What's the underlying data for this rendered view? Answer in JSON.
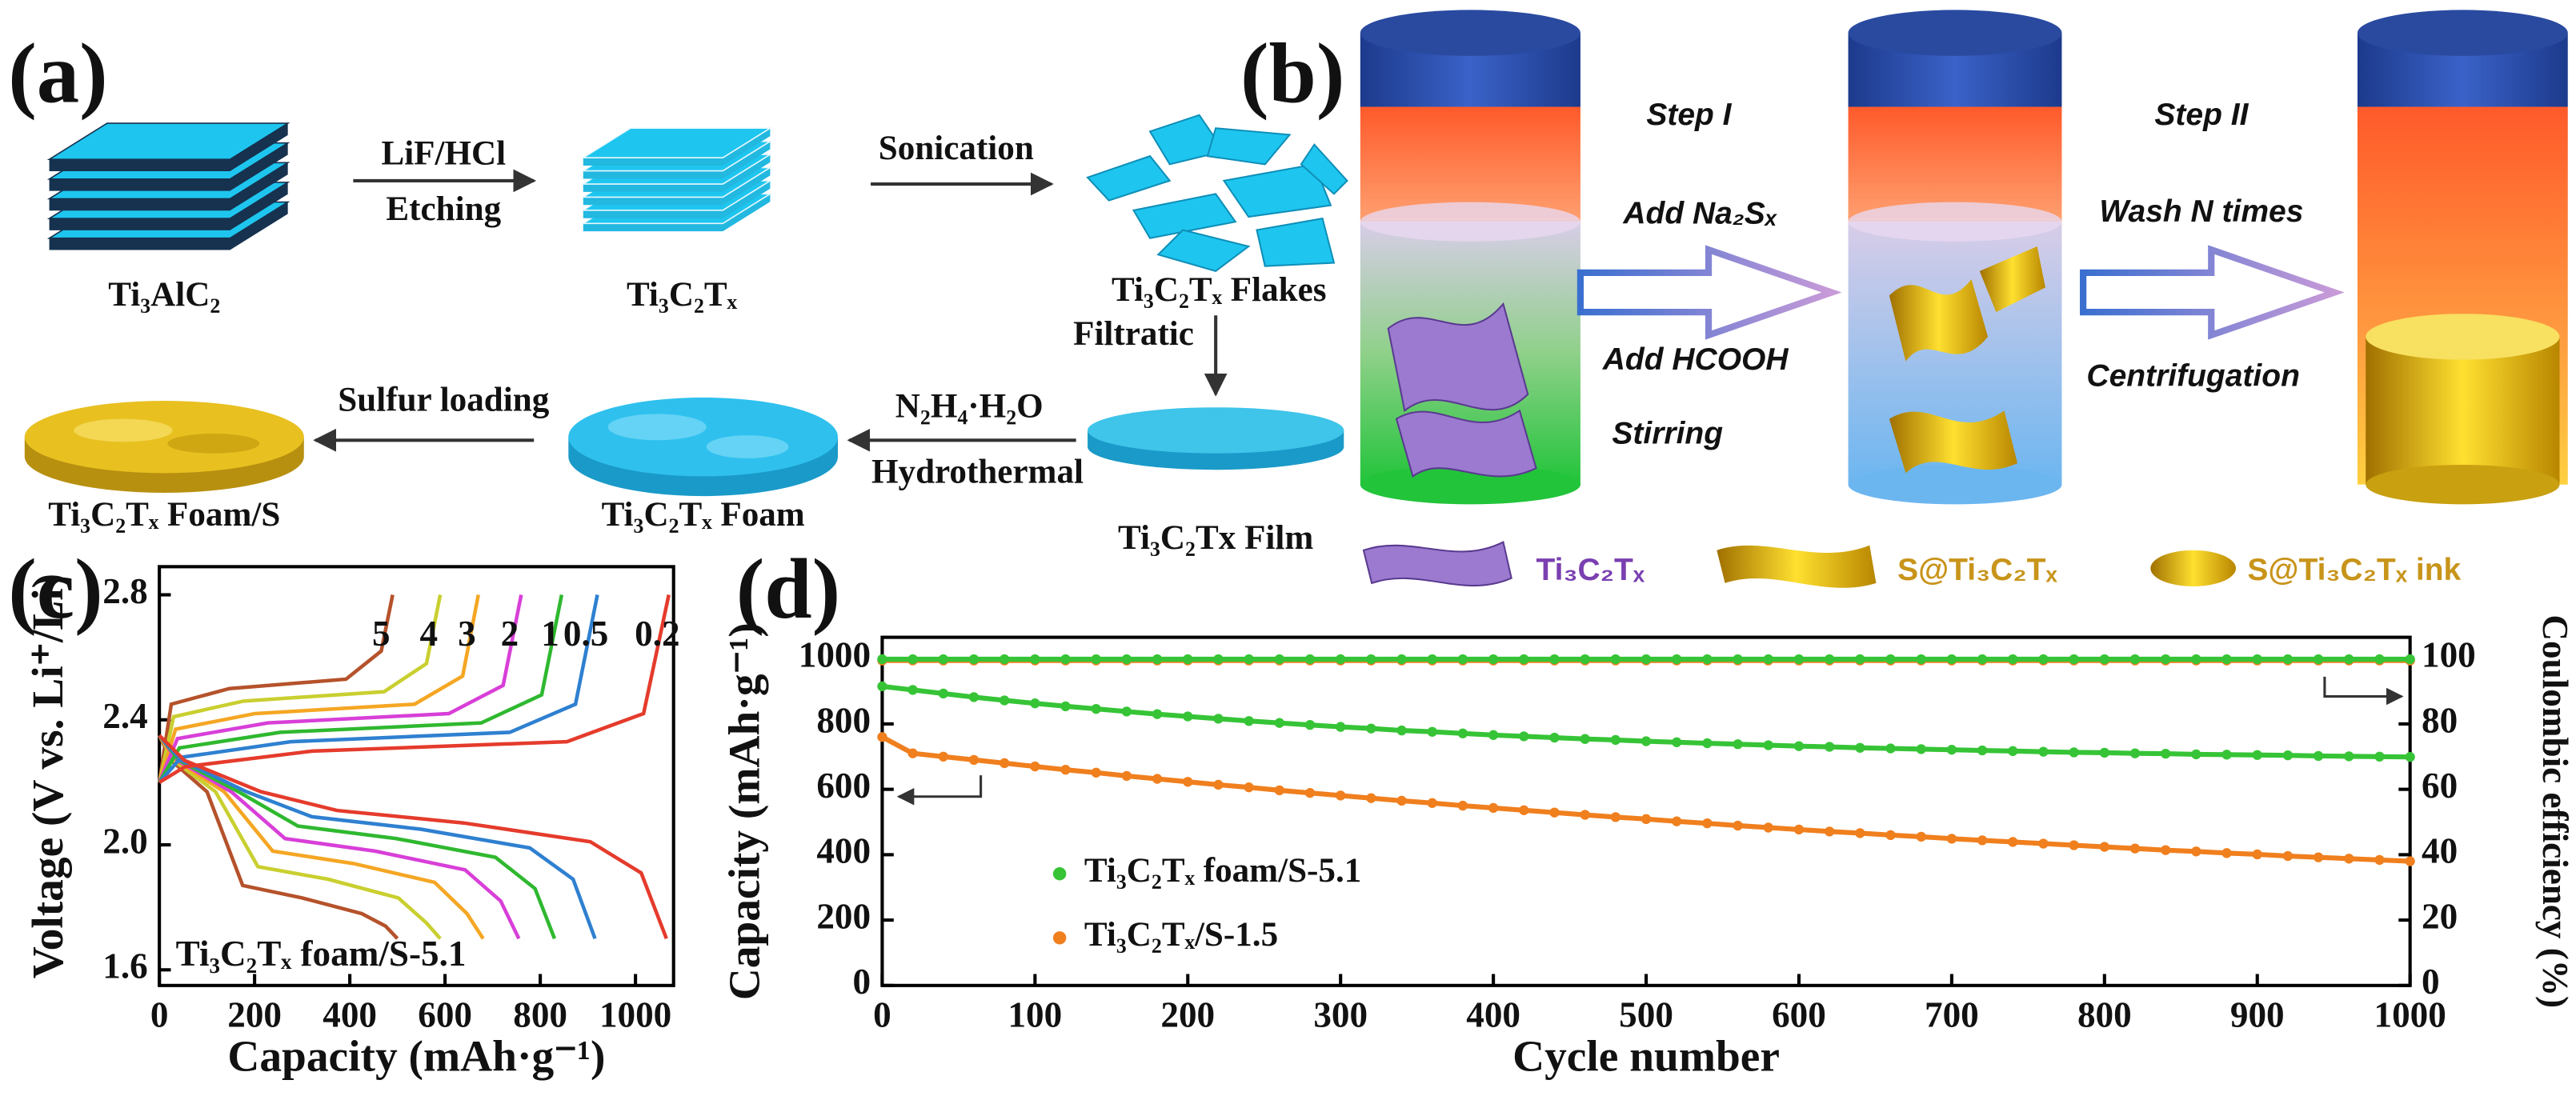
{
  "panel_a": {
    "label": "(a)",
    "etchant": "LiF/HCl",
    "etching": "Etching",
    "sonication": "Sonication",
    "max_phase": "Ti₃AlC₂",
    "mxene": "Ti₃C₂Tₓ",
    "flakes": "Ti₃C₂Tₓ Flakes",
    "filtration": "Filtratic",
    "hydrazine": "N₂H₄·H₂O",
    "hydrothermal": "Hydrothermal",
    "sulfur_loading": "Sulfur loading",
    "foam_s": "Ti₃C₂Tₓ Foam/S",
    "foam": "Ti₃C₂Tₓ Foam",
    "film": "Ti₃C₂Tx Film"
  },
  "panel_b": {
    "label": "(b)",
    "step1": "Step I",
    "add_na2sx": "Add Na₂Sₓ",
    "add_hcooh": "Add HCOOH",
    "stirring": "Stirring",
    "step2": "Step II",
    "wash": "Wash N times",
    "centrifugation": "Centrifugation",
    "legend": [
      "Ti₃C₂Tₓ",
      "S@Ti₃C₂Tₓ",
      "S@Ti₃C₂Tₓ ink"
    ]
  },
  "panel_c_label": "(c)",
  "panel_d_label": "(d)",
  "chart_data": [
    {
      "type": "line",
      "xlabel": "Capacity (mAh·g⁻¹)",
      "ylabel": "Voltage (V vs. Li⁺/Li)",
      "annotation": "Ti₃C₂Tₓ foam/S-5.1",
      "xlim": [
        0,
        1080
      ],
      "ylim": [
        1.55,
        2.89
      ],
      "xticks": [
        0,
        200,
        400,
        600,
        800,
        1000
      ],
      "yticks": [
        1.6,
        {
          "value": 2,
          "label": "2.0"
        },
        2.4,
        2.8
      ],
      "series": [
        {
          "name": "5",
          "color": "#b5522b",
          "discharge": {
            "x": [
              0,
              25,
              100,
              175,
              300,
              425,
              475,
              500
            ],
            "values": [
              2.35,
              2.27,
              2.17,
              1.87,
              1.83,
              1.78,
              1.74,
              1.7
            ]
          },
          "charge": {
            "x": [
              0,
              25,
              147,
              392,
              466,
              490
            ],
            "values": [
              2.2,
              2.45,
              2.5,
              2.53,
              2.62,
              2.8
            ]
          }
        },
        {
          "name": "4",
          "color": "#c9cf2f",
          "discharge": {
            "x": [
              0,
              30,
              118,
              207,
              354,
              502,
              561,
              590
            ],
            "values": [
              2.35,
              2.27,
              2.17,
              1.93,
              1.89,
              1.83,
              1.75,
              1.7
            ]
          },
          "charge": {
            "x": [
              0,
              30,
              177,
              472,
              561,
              590
            ],
            "values": [
              2.2,
              2.41,
              2.46,
              2.49,
              2.58,
              2.8
            ]
          }
        },
        {
          "name": "3",
          "color": "#f5a623",
          "discharge": {
            "x": [
              0,
              34,
              136,
              238,
              408,
              578,
              646,
              680
            ],
            "values": [
              2.35,
              2.27,
              2.17,
              1.98,
              1.94,
              1.88,
              1.78,
              1.7
            ]
          },
          "charge": {
            "x": [
              0,
              34,
              201,
              536,
              637,
              670
            ],
            "values": [
              2.2,
              2.37,
              2.42,
              2.45,
              2.54,
              2.8
            ]
          }
        },
        {
          "name": "2",
          "color": "#d83fd8",
          "discharge": {
            "x": [
              0,
              38,
              151,
              264,
              453,
              642,
              717,
              755
            ],
            "values": [
              2.35,
              2.27,
              2.17,
              2.02,
              1.98,
              1.92,
              1.82,
              1.7
            ]
          },
          "charge": {
            "x": [
              0,
              38,
              228,
              608,
              722,
              760
            ],
            "values": [
              2.2,
              2.34,
              2.39,
              2.42,
              2.51,
              2.8
            ]
          }
        },
        {
          "name": "1",
          "color": "#2fb82f",
          "discharge": {
            "x": [
              0,
              42,
              166,
              291,
              498,
              706,
              789,
              830
            ],
            "values": [
              2.35,
              2.27,
              2.17,
              2.06,
              2.02,
              1.96,
              1.86,
              1.7
            ]
          },
          "charge": {
            "x": [
              0,
              42,
              254,
              676,
              803,
              845
            ],
            "values": [
              2.2,
              2.31,
              2.36,
              2.39,
              2.48,
              2.8
            ]
          }
        },
        {
          "name": "0.5",
          "color": "#2f80d0",
          "discharge": {
            "x": [
              0,
              46,
              183,
              320,
              549,
              778,
              869,
              915
            ],
            "values": [
              2.35,
              2.27,
              2.17,
              2.09,
              2.05,
              1.99,
              1.89,
              1.7
            ]
          },
          "charge": {
            "x": [
              0,
              46,
              276,
              736,
              874,
              920
            ],
            "values": [
              2.2,
              2.28,
              2.33,
              2.36,
              2.45,
              2.8
            ]
          }
        },
        {
          "name": "0.2",
          "color": "#e53b2c",
          "discharge": {
            "x": [
              0,
              53,
              213,
              373,
              639,
              905,
              1012,
              1065
            ],
            "values": [
              2.35,
              2.27,
              2.17,
              2.11,
              2.07,
              2.01,
              1.91,
              1.7
            ]
          },
          "charge": {
            "x": [
              0,
              54,
              321,
              856,
              1017,
              1070
            ],
            "values": [
              2.2,
              2.25,
              2.3,
              2.33,
              2.42,
              2.8
            ]
          }
        }
      ]
    },
    {
      "type": "scatter",
      "xlabel": "Cycle number",
      "ylabel": "Capacity (mAh·g⁻¹)",
      "y2label": "Coulombic efficiency (%)",
      "xlim": [
        0,
        1000
      ],
      "ylim": [
        0,
        1065
      ],
      "y2lim": [
        0,
        106.5
      ],
      "xticks": [
        0,
        100,
        200,
        300,
        400,
        500,
        600,
        700,
        800,
        900,
        1000
      ],
      "yticks": [
        0,
        200,
        400,
        600,
        800,
        1000
      ],
      "y2ticks": [
        0,
        20,
        40,
        60,
        80,
        100
      ],
      "x": [
        0,
        20,
        40,
        60,
        80,
        100,
        120,
        140,
        160,
        180,
        200,
        220,
        240,
        260,
        280,
        300,
        320,
        340,
        360,
        380,
        400,
        420,
        440,
        460,
        480,
        500,
        520,
        540,
        560,
        580,
        600,
        620,
        640,
        660,
        680,
        700,
        720,
        740,
        760,
        780,
        800,
        820,
        840,
        860,
        880,
        900,
        920,
        940,
        960,
        980,
        1000
      ],
      "series": [
        {
          "name": "Ti₃C₂Tₓ foam/S-5.1",
          "color": "#36c436",
          "values": [
            915,
            904,
            893,
            882,
            872,
            863,
            854,
            846,
            838,
            830,
            823,
            816,
            809,
            803,
            797,
            791,
            786,
            780,
            776,
            771,
            766,
            762,
            758,
            754,
            751,
            747,
            744,
            741,
            738,
            735,
            732,
            730,
            727,
            725,
            723,
            721,
            719,
            717,
            715,
            713,
            712,
            710,
            709,
            707,
            706,
            705,
            704,
            702,
            701,
            700,
            699
          ]
        },
        {
          "name": "Ti₃C₂Tₓ/S-1.5",
          "color": "#f07f1e",
          "values": [
            760,
            710,
            700,
            690,
            680,
            670,
            660,
            651,
            641,
            632,
            623,
            614,
            606,
            597,
            589,
            581,
            573,
            565,
            558,
            550,
            543,
            536,
            529,
            522,
            515,
            509,
            502,
            496,
            489,
            483,
            477,
            471,
            466,
            460,
            455,
            449,
            444,
            439,
            434,
            429,
            424,
            419,
            414,
            410,
            405,
            401,
            396,
            392,
            388,
            384,
            380
          ]
        },
        {
          "color": "#f07f1e",
          "axis": "y2",
          "values": [
            99.4,
            99.4,
            99.4,
            99.4,
            99.4,
            99.4,
            99.4,
            99.4,
            99.4,
            99.4,
            99.4,
            99.4,
            99.4,
            99.4,
            99.4,
            99.4,
            99.4,
            99.4,
            99.4,
            99.4,
            99.4,
            99.4,
            99.4,
            99.4,
            99.4,
            99.4,
            99.4,
            99.4,
            99.4,
            99.4,
            99.4,
            99.4,
            99.4,
            99.4,
            99.4,
            99.4,
            99.4,
            99.4,
            99.4,
            99.4,
            99.4,
            99.4,
            99.4,
            99.4,
            99.4,
            99.4,
            99.4,
            99.4,
            99.4,
            99.4,
            99.4
          ]
        },
        {
          "color": "#36c436",
          "axis": "y2",
          "values": [
            99.8,
            99.8,
            99.8,
            99.8,
            99.8,
            99.8,
            99.8,
            99.8,
            99.8,
            99.8,
            99.8,
            99.8,
            99.8,
            99.8,
            99.8,
            99.8,
            99.8,
            99.8,
            99.8,
            99.8,
            99.8,
            99.8,
            99.8,
            99.8,
            99.8,
            99.8,
            99.8,
            99.8,
            99.8,
            99.8,
            99.8,
            99.8,
            99.8,
            99.8,
            99.8,
            99.8,
            99.8,
            99.8,
            99.8,
            99.8,
            99.8,
            99.8,
            99.8,
            99.8,
            99.8,
            99.8,
            99.8,
            99.8,
            99.8,
            99.8,
            99.8
          ]
        }
      ]
    }
  ]
}
